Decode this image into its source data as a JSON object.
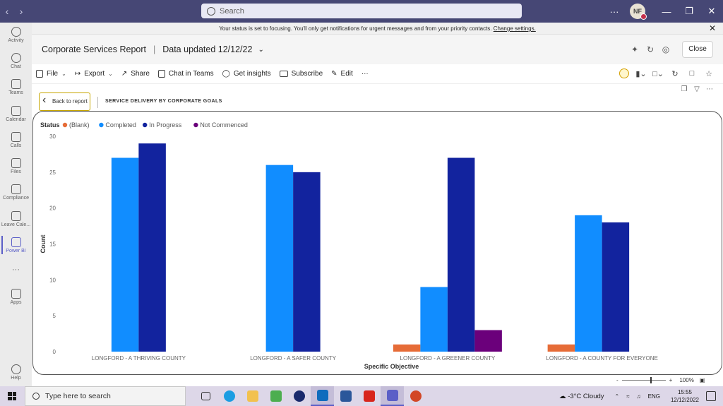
{
  "titlebar": {
    "search_placeholder": "Search",
    "avatar_initials": "NF",
    "more": "···"
  },
  "rail": [
    {
      "label": "Activity",
      "icon": "bell-icon"
    },
    {
      "label": "Chat",
      "icon": "chat-icon"
    },
    {
      "label": "Teams",
      "icon": "teams-icon"
    },
    {
      "label": "Calendar",
      "icon": "calendar-icon"
    },
    {
      "label": "Calls",
      "icon": "phone-icon"
    },
    {
      "label": "Files",
      "icon": "file-icon"
    },
    {
      "label": "Compliance",
      "icon": "compliance-icon"
    },
    {
      "label": "Leave Cale...",
      "icon": "plane-icon"
    },
    {
      "label": "Power BI",
      "icon": "powerbi-icon"
    },
    {
      "label": "···",
      "icon": "more-icon"
    },
    {
      "label": "Apps",
      "icon": "apps-icon"
    },
    {
      "label": "Help",
      "icon": "help-icon"
    }
  ],
  "banner": {
    "text": "Your status is set to focusing. You'll only get notifications for urgent messages and from your priority contacts.",
    "link": "Change settings."
  },
  "header": {
    "title": "Corporate Services Report",
    "separator": "|",
    "updated": "Data updated 12/12/22",
    "close": "Close"
  },
  "toolbar": {
    "file": "File",
    "export": "Export",
    "share": "Share",
    "chat_in_teams": "Chat in Teams",
    "get_insights": "Get insights",
    "subscribe": "Subscribe",
    "edit": "Edit",
    "more": "···"
  },
  "canvas": {
    "back": "Back to report",
    "page_label": "SERVICE DELIVERY BY CORPORATE GOALS",
    "zoom": "100%",
    "zoom_minus": "-",
    "zoom_plus": "+"
  },
  "taskbar": {
    "search": "Type here to search",
    "weather": "-3°C  Cloudy",
    "lang": "ENG",
    "time": "15:55",
    "date": "12/12/2022"
  },
  "chart_data": {
    "type": "bar",
    "legend_title": "Status",
    "legend_position": "top-left",
    "xlabel": "Specific Objective",
    "ylabel": "Count",
    "ylim": [
      0,
      30
    ],
    "yticks": [
      0,
      5,
      10,
      15,
      20,
      25,
      30
    ],
    "categories": [
      "LONGFORD - A THRIVING COUNTY",
      "LONGFORD - A SAFER COUNTY",
      "LONGFORD - A GREENER COUNTY",
      "LONGFORD - A COUNTY FOR EVERYONE"
    ],
    "series": [
      {
        "name": "(Blank)",
        "color": "#e66c37",
        "values": [
          null,
          null,
          1,
          1
        ]
      },
      {
        "name": "Completed",
        "color": "#118dff",
        "values": [
          27,
          26,
          9,
          19
        ]
      },
      {
        "name": "In Progress",
        "color": "#12239e",
        "values": [
          29,
          25,
          27,
          18
        ]
      },
      {
        "name": "Not Commenced",
        "color": "#6b007b",
        "values": [
          null,
          null,
          3,
          null
        ]
      }
    ]
  }
}
